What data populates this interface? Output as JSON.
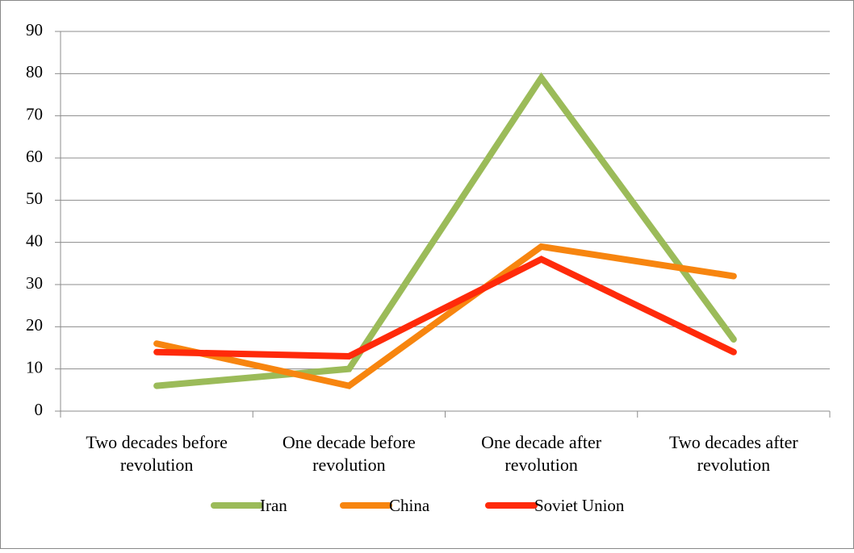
{
  "chart_data": {
    "type": "line",
    "categories": [
      "Two decades before revolution",
      "One decade before revolution",
      "One decade after revolution",
      "Two decades after revolution"
    ],
    "series": [
      {
        "name": "Iran",
        "color": "#9bbb59",
        "values": [
          6,
          10,
          79,
          17
        ]
      },
      {
        "name": "China",
        "color": "#f7850f",
        "values": [
          16,
          6,
          39,
          32
        ]
      },
      {
        "name": "Soviet Union",
        "color": "#ff2a0a",
        "values": [
          14,
          13,
          36,
          14
        ]
      }
    ],
    "ylim": [
      0,
      90
    ],
    "yticks": [
      0,
      10,
      20,
      30,
      40,
      50,
      60,
      70,
      80,
      90
    ],
    "grid": true,
    "legend": "bottom"
  }
}
